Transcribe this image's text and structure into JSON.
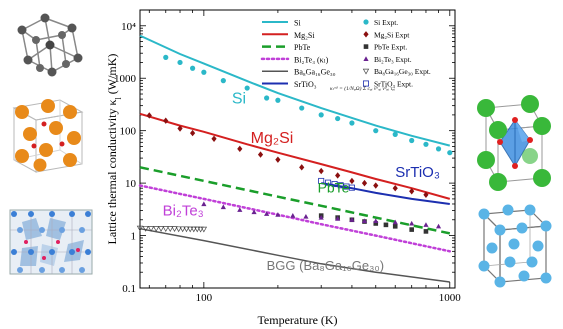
{
  "chart_data": {
    "type": "line",
    "xlabel": "Temperature (K)",
    "ylabel": "Lattice thermal conductivity κ",
    "ylabel_sub": "l",
    "ylabel_unit": " (W/mK)",
    "xscale": "log",
    "yscale": "log",
    "xlim": [
      55,
      1050
    ],
    "ylim": [
      0.1,
      20000
    ],
    "xticks": [
      {
        "v": 100,
        "label": "100"
      },
      {
        "v": 1000,
        "label": "1000"
      }
    ],
    "yticks": [
      {
        "v": 0.1,
        "label": "0.1"
      },
      {
        "v": 1,
        "label": "1"
      },
      {
        "v": 10,
        "label": "10"
      },
      {
        "v": 100,
        "label": "100"
      },
      {
        "v": 1000,
        "label": "1000"
      },
      {
        "v": 10000,
        "label": "10⁴"
      }
    ],
    "formula": "κₗᵅᵝ = (1/NᵩΩ) Σ cᵩᵢ vᵅᵩᵢ vᵝᵩᵢ τᵩᵢ",
    "legend_position": "top-right",
    "series": [
      {
        "name": "Si",
        "legend": "Si",
        "color": "#2bb8c8",
        "style": "solid",
        "width": 2,
        "x": [
          55,
          80,
          100,
          150,
          200,
          300,
          400,
          500,
          700,
          1000
        ],
        "y": [
          6500,
          2900,
          1900,
          880,
          520,
          270,
          175,
          125,
          80,
          52
        ]
      },
      {
        "name": "Mg2Si",
        "legend": "Mg₂Si",
        "color": "#d42020",
        "style": "solid",
        "width": 2,
        "x": [
          55,
          80,
          100,
          150,
          200,
          300,
          400,
          500,
          700,
          1000
        ],
        "y": [
          210,
          125,
          95,
          55,
          38,
          23,
          16,
          12,
          8,
          5
        ]
      },
      {
        "name": "PbTe",
        "legend": "PbTe",
        "color": "#1a9e2a",
        "style": "dashed",
        "width": 2.5,
        "x": [
          55,
          100,
          200,
          300,
          500,
          1000
        ],
        "y": [
          20,
          11,
          5.5,
          3.7,
          2.2,
          1.1
        ]
      },
      {
        "name": "Bi2Te3 (κl)",
        "legend": "Bi₂Te₃ (κₗ)",
        "color": "#c040d8",
        "style": "dotted",
        "width": 2.5,
        "x": [
          55,
          100,
          200,
          300,
          500,
          1000
        ],
        "y": [
          9,
          5,
          2.5,
          1.65,
          1.0,
          0.5
        ]
      },
      {
        "name": "Ba8Ga16Ge30",
        "legend": "Ba₈Ga₁₆Ge₃₀",
        "color": "#555555",
        "style": "solid",
        "width": 1.5,
        "x": [
          55,
          100,
          200,
          300,
          500,
          1000
        ],
        "y": [
          1.35,
          0.8,
          0.42,
          0.29,
          0.2,
          0.13
        ]
      },
      {
        "name": "SrTiO3",
        "legend": "SrTiO₃",
        "color": "#1c2fb0",
        "style": "solid",
        "width": 2,
        "x": [
          300,
          400,
          500,
          700,
          1000
        ],
        "y": [
          10,
          8,
          6.5,
          5,
          4
        ]
      }
    ],
    "experiments": [
      {
        "name": "Si Expt.",
        "legend": "Si Expt.",
        "marker": "circle",
        "color": "#2bb8c8",
        "x": [
          70,
          80,
          90,
          100,
          120,
          150,
          180,
          200,
          250,
          300,
          350,
          400,
          500,
          600,
          700,
          800,
          900,
          1000
        ],
        "y": [
          2500,
          2000,
          1550,
          1300,
          900,
          650,
          420,
          380,
          270,
          200,
          170,
          140,
          100,
          85,
          65,
          55,
          45,
          38
        ]
      },
      {
        "name": "Mg2Si Expt",
        "legend": "Mg₂Si Expt",
        "marker": "diamond",
        "color": "#8b1010",
        "x": [
          60,
          70,
          80,
          90,
          110,
          140,
          170,
          200,
          250,
          300,
          350,
          400,
          450,
          500,
          600,
          700,
          800
        ],
        "y": [
          195,
          155,
          110,
          90,
          70,
          45,
          35,
          28,
          20,
          17,
          14,
          11,
          10,
          9,
          8,
          7,
          6
        ]
      },
      {
        "name": "PbTe Expt.",
        "legend": "PbTe Expt.",
        "marker": "square",
        "color": "#333333",
        "x": [
          300,
          350,
          400,
          450,
          500,
          550,
          600,
          700,
          800
        ],
        "y": [
          2.4,
          2.2,
          2.0,
          1.85,
          1.7,
          1.6,
          1.5,
          1.3,
          1.2
        ]
      },
      {
        "name": "Bi2Te3 Expt.",
        "legend": "Bi₂Te₃ Expt.",
        "marker": "triangle",
        "color": "#6a2290",
        "x": [
          100,
          120,
          140,
          160,
          180,
          200,
          230,
          260,
          300,
          350,
          400,
          450,
          500,
          600,
          700,
          800,
          900
        ],
        "y": [
          4.0,
          3.5,
          3.1,
          2.8,
          2.6,
          2.5,
          2.4,
          2.3,
          2.2,
          2.1,
          2.0,
          1.9,
          1.9,
          1.8,
          1.7,
          1.6,
          1.5
        ]
      },
      {
        "name": "Ba8Ga16Ge30 Expt.",
        "legend": "Ba₈Ga₁₆Ge₃₀ Expt.",
        "marker": "triangle-down",
        "color": "#444444",
        "x": [
          55,
          58,
          61,
          64,
          67,
          70,
          73,
          76,
          79,
          82,
          85,
          88,
          91,
          94,
          97,
          100
        ],
        "y": [
          1.38,
          1.37,
          1.36,
          1.36,
          1.36,
          1.35,
          1.35,
          1.35,
          1.34,
          1.34,
          1.34,
          1.33,
          1.33,
          1.33,
          1.32,
          1.32
        ]
      },
      {
        "name": "SrTiO3 Expt.",
        "legend": "SrTiO₃ Expt.",
        "marker": "square-dot",
        "color": "#1c2fb0",
        "x": [
          300,
          320,
          340,
          360,
          380,
          400
        ],
        "y": [
          11,
          10.2,
          9.6,
          9.1,
          8.6,
          8.2
        ]
      }
    ],
    "curve_labels": [
      {
        "text": "Si",
        "color": "#2bb8c8",
        "x": 130,
        "y": 330,
        "size": 16
      },
      {
        "text": "Mg₂Si",
        "color": "#d42020",
        "x": 155,
        "y": 58,
        "size": 16
      },
      {
        "text": "PbTe",
        "color": "#1a9e2a",
        "x": 290,
        "y": 6.6,
        "size": 14
      },
      {
        "text": "SrTiO₃",
        "color": "#1c2fb0",
        "x": 600,
        "y": 13,
        "size": 15
      },
      {
        "text": "Bi₂Te₃",
        "color": "#c040d8",
        "x": 68,
        "y": 2.4,
        "size": 15
      },
      {
        "text": "BGG (Ba₈Ga₁₆Ge₃₀)",
        "color": "#777777",
        "x": 180,
        "y": 0.22,
        "size": 13
      }
    ]
  }
}
